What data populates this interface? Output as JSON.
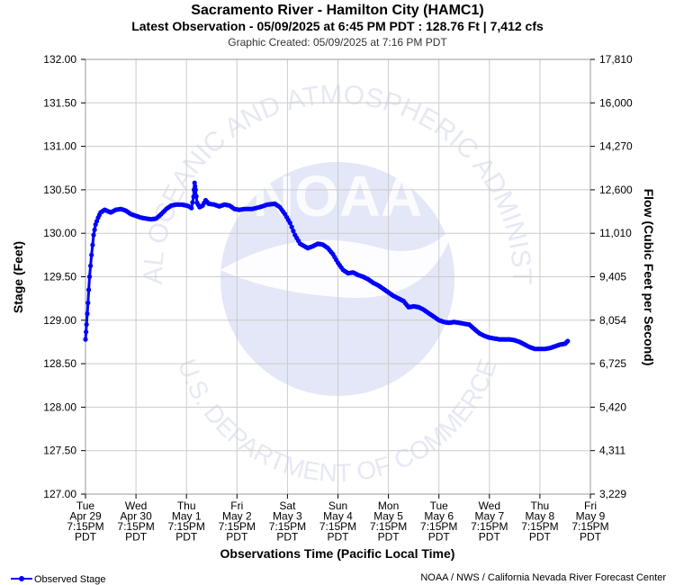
{
  "title": "Sacramento River - Hamilton City (HAMC1)",
  "subtitle": "Latest Observation - 05/09/2025 at 6:45 PM PDT : 128.76 Ft | 7,412 cfs",
  "created": "Graphic Created: 05/09/2025 at 7:16 PM PDT",
  "footer_credit": "NOAA / NWS / California Nevada River Forecast Center",
  "watermark": {
    "ring_top": "NATIONAL OCEANIC AND ATMOSPHERIC ADMINISTRATION",
    "ring_bottom": "U.S. DEPARTMENT OF COMMERCE",
    "center": "NOAA"
  },
  "colors": {
    "series": "#0000ff",
    "grid": "#cccccc",
    "watermark": "#dfe3f5",
    "watermark_text": "#e8ebf5"
  },
  "chart_data": {
    "type": "line",
    "xlabel": "Observations Time (Pacific Local Time)",
    "ylabel": "Stage (Feet)",
    "y2label": "Flow (Cubic Feet per Second)",
    "grid": true,
    "legend_position": "bottom-left",
    "xlim": [
      0,
      10
    ],
    "ylim": [
      127.0,
      132.0
    ],
    "x_ticks": [
      {
        "x": 0,
        "lines": [
          "Tue",
          "Apr 29",
          "7:15PM",
          "PDT"
        ]
      },
      {
        "x": 1,
        "lines": [
          "Wed",
          "Apr 30",
          "7:15PM",
          "PDT"
        ]
      },
      {
        "x": 2,
        "lines": [
          "Thu",
          "May 1",
          "7:15PM",
          "PDT"
        ]
      },
      {
        "x": 3,
        "lines": [
          "Fri",
          "May 2",
          "7:15PM",
          "PDT"
        ]
      },
      {
        "x": 4,
        "lines": [
          "Sat",
          "May 3",
          "7:15PM",
          "PDT"
        ]
      },
      {
        "x": 5,
        "lines": [
          "Sun",
          "May 4",
          "7:15PM",
          "PDT"
        ]
      },
      {
        "x": 6,
        "lines": [
          "Mon",
          "May 5",
          "7:15PM",
          "PDT"
        ]
      },
      {
        "x": 7,
        "lines": [
          "Tue",
          "May 6",
          "7:15PM",
          "PDT"
        ]
      },
      {
        "x": 8,
        "lines": [
          "Wed",
          "May 7",
          "7:15PM",
          "PDT"
        ]
      },
      {
        "x": 9,
        "lines": [
          "Thu",
          "May 8",
          "7:15PM",
          "PDT"
        ]
      },
      {
        "x": 10,
        "lines": [
          "Fri",
          "May 9",
          "7:15PM",
          "PDT"
        ]
      }
    ],
    "y_ticks": [
      {
        "value": 132.0,
        "label": "132.00",
        "flow": "17,810"
      },
      {
        "value": 131.5,
        "label": "131.50",
        "flow": "16,000"
      },
      {
        "value": 131.0,
        "label": "131.00",
        "flow": "14,270"
      },
      {
        "value": 130.5,
        "label": "130.50",
        "flow": "12,600"
      },
      {
        "value": 130.0,
        "label": "130.00",
        "flow": "11,010"
      },
      {
        "value": 129.5,
        "label": "129.50",
        "flow": "9,405"
      },
      {
        "value": 129.0,
        "label": "129.00",
        "flow": "8,054"
      },
      {
        "value": 128.5,
        "label": "128.50",
        "flow": "6,725"
      },
      {
        "value": 128.0,
        "label": "128.00",
        "flow": "5,420"
      },
      {
        "value": 127.5,
        "label": "127.50",
        "flow": "4,311"
      },
      {
        "value": 127.0,
        "label": "127.00",
        "flow": "3,229"
      }
    ],
    "series": [
      {
        "name": "Observed Stage",
        "color": "#0000ff",
        "points": [
          [
            0.0,
            128.78
          ],
          [
            0.02,
            128.95
          ],
          [
            0.05,
            129.2
          ],
          [
            0.08,
            129.5
          ],
          [
            0.12,
            129.75
          ],
          [
            0.16,
            129.98
          ],
          [
            0.2,
            130.1
          ],
          [
            0.25,
            130.18
          ],
          [
            0.3,
            130.24
          ],
          [
            0.38,
            130.27
          ],
          [
            0.5,
            130.24
          ],
          [
            0.6,
            130.27
          ],
          [
            0.7,
            130.28
          ],
          [
            0.8,
            130.26
          ],
          [
            0.9,
            130.22
          ],
          [
            1.0,
            130.2
          ],
          [
            1.1,
            130.18
          ],
          [
            1.2,
            130.17
          ],
          [
            1.3,
            130.16
          ],
          [
            1.4,
            130.17
          ],
          [
            1.5,
            130.22
          ],
          [
            1.6,
            130.28
          ],
          [
            1.7,
            130.32
          ],
          [
            1.8,
            130.33
          ],
          [
            1.9,
            130.33
          ],
          [
            2.0,
            130.32
          ],
          [
            2.05,
            130.31
          ],
          [
            2.1,
            130.29
          ],
          [
            2.14,
            130.42
          ],
          [
            2.16,
            130.58
          ],
          [
            2.18,
            130.5
          ],
          [
            2.21,
            130.35
          ],
          [
            2.26,
            130.3
          ],
          [
            2.32,
            130.32
          ],
          [
            2.38,
            130.38
          ],
          [
            2.44,
            130.34
          ],
          [
            2.55,
            130.33
          ],
          [
            2.65,
            130.31
          ],
          [
            2.75,
            130.33
          ],
          [
            2.85,
            130.32
          ],
          [
            2.95,
            130.28
          ],
          [
            3.05,
            130.27
          ],
          [
            3.15,
            130.28
          ],
          [
            3.3,
            130.28
          ],
          [
            3.45,
            130.3
          ],
          [
            3.6,
            130.33
          ],
          [
            3.75,
            130.34
          ],
          [
            3.85,
            130.3
          ],
          [
            3.95,
            130.22
          ],
          [
            4.05,
            130.12
          ],
          [
            4.15,
            129.98
          ],
          [
            4.25,
            129.88
          ],
          [
            4.4,
            129.83
          ],
          [
            4.5,
            129.85
          ],
          [
            4.6,
            129.88
          ],
          [
            4.7,
            129.87
          ],
          [
            4.8,
            129.83
          ],
          [
            4.9,
            129.76
          ],
          [
            5.0,
            129.66
          ],
          [
            5.1,
            129.58
          ],
          [
            5.2,
            129.54
          ],
          [
            5.3,
            129.55
          ],
          [
            5.4,
            129.52
          ],
          [
            5.5,
            129.5
          ],
          [
            5.6,
            129.47
          ],
          [
            5.7,
            129.43
          ],
          [
            5.8,
            129.4
          ],
          [
            5.9,
            129.36
          ],
          [
            6.0,
            129.32
          ],
          [
            6.1,
            129.28
          ],
          [
            6.2,
            129.25
          ],
          [
            6.3,
            129.22
          ],
          [
            6.4,
            129.15
          ],
          [
            6.5,
            129.16
          ],
          [
            6.6,
            129.15
          ],
          [
            6.7,
            129.12
          ],
          [
            6.8,
            129.08
          ],
          [
            6.9,
            129.04
          ],
          [
            7.0,
            129.0
          ],
          [
            7.1,
            128.98
          ],
          [
            7.2,
            128.97
          ],
          [
            7.3,
            128.98
          ],
          [
            7.4,
            128.97
          ],
          [
            7.5,
            128.96
          ],
          [
            7.6,
            128.95
          ],
          [
            7.7,
            128.9
          ],
          [
            7.8,
            128.85
          ],
          [
            7.9,
            128.82
          ],
          [
            8.0,
            128.8
          ],
          [
            8.1,
            128.79
          ],
          [
            8.2,
            128.78
          ],
          [
            8.3,
            128.78
          ],
          [
            8.4,
            128.78
          ],
          [
            8.5,
            128.77
          ],
          [
            8.6,
            128.75
          ],
          [
            8.7,
            128.72
          ],
          [
            8.8,
            128.69
          ],
          [
            8.9,
            128.67
          ],
          [
            9.0,
            128.67
          ],
          [
            9.1,
            128.67
          ],
          [
            9.2,
            128.68
          ],
          [
            9.3,
            128.7
          ],
          [
            9.4,
            128.72
          ],
          [
            9.5,
            128.73
          ],
          [
            9.55,
            128.76
          ]
        ]
      }
    ]
  }
}
